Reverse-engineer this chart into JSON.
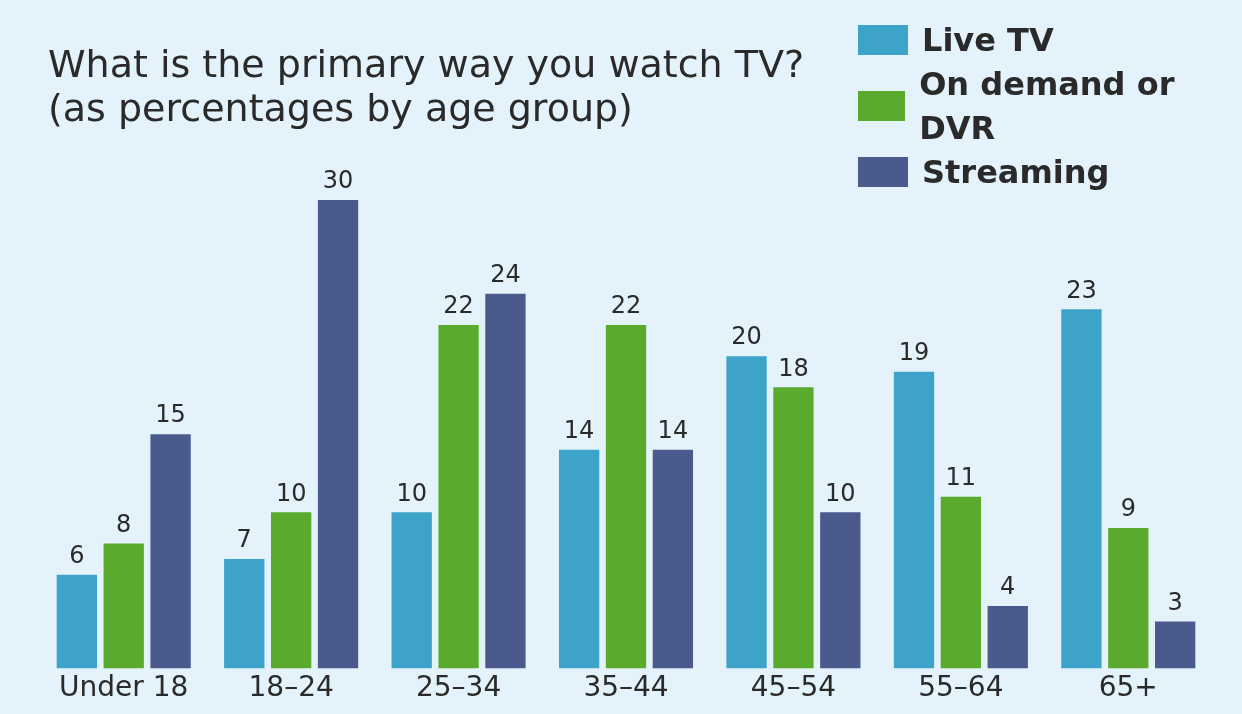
{
  "chart_data": {
    "type": "bar",
    "title": "What is the primary way you watch TV?",
    "subtitle": "(as percentages by age group)",
    "categories": [
      "Under 18",
      "18–24",
      "25–34",
      "35–44",
      "45–54",
      "55–64",
      "65+"
    ],
    "series": [
      {
        "name": "Live TV",
        "color": "#3ea3c8",
        "values": [
          6,
          7,
          10,
          14,
          20,
          19,
          23
        ]
      },
      {
        "name": "On demand or DVR",
        "color": "#5aaa2e",
        "values": [
          8,
          10,
          22,
          22,
          18,
          11,
          9
        ]
      },
      {
        "name": "Streaming",
        "color": "#4a5a8c",
        "values": [
          15,
          30,
          24,
          14,
          10,
          4,
          3
        ]
      }
    ],
    "ylim": [
      0,
      30
    ],
    "data_labels": true,
    "legend": "top right",
    "grid": false,
    "tick_labels": "x"
  }
}
